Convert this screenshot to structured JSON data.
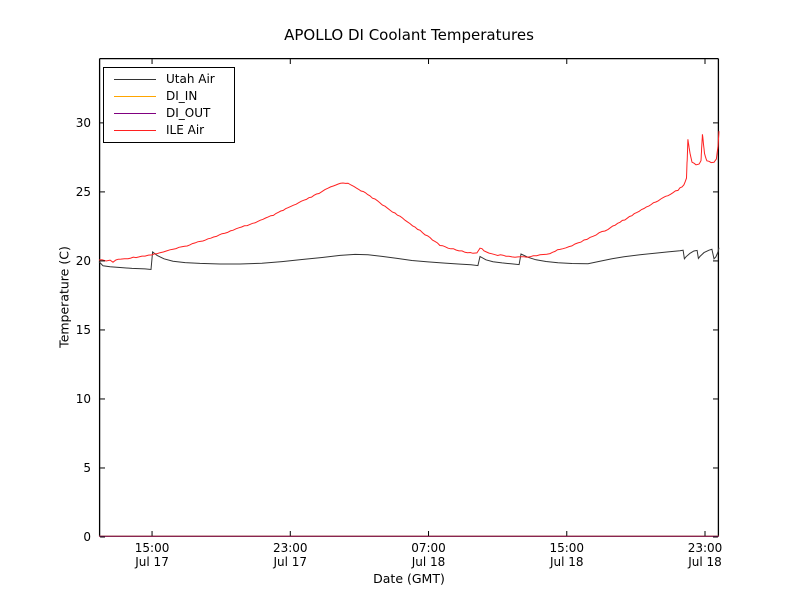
{
  "chart_data": {
    "type": "line",
    "title": "APOLLO DI Coolant Temperatures",
    "xlabel": "Date (GMT)",
    "ylabel": "Temperature (C)",
    "grid": false,
    "legend_position": "upper left",
    "x_axis": {
      "unit": "hours since Jul 17 00:00 GMT",
      "min": 11.93,
      "max": 47.81,
      "ticks": [
        {
          "value": 15,
          "label": "15:00",
          "sublabel": "Jul 17"
        },
        {
          "value": 23,
          "label": "23:00",
          "sublabel": "Jul 17"
        },
        {
          "value": 31,
          "label": "07:00",
          "sublabel": "Jul 18"
        },
        {
          "value": 39,
          "label": "15:00",
          "sublabel": "Jul 18"
        },
        {
          "value": 47,
          "label": "23:00",
          "sublabel": "Jul 18"
        }
      ]
    },
    "y_axis": {
      "min": 0,
      "max": 34.7,
      "ticks": [
        0,
        5,
        10,
        15,
        20,
        25,
        30
      ]
    },
    "series": [
      {
        "name": "Utah Air",
        "color": "#333333",
        "noisy": false,
        "points": [
          [
            11.93,
            19.95
          ],
          [
            12.16,
            19.65
          ],
          [
            12.57,
            19.58
          ],
          [
            13.15,
            19.52
          ],
          [
            13.84,
            19.46
          ],
          [
            14.59,
            19.42
          ],
          [
            14.94,
            19.38
          ],
          [
            15.03,
            20.65
          ],
          [
            15.29,
            20.4
          ],
          [
            15.69,
            20.15
          ],
          [
            16.21,
            19.98
          ],
          [
            16.91,
            19.88
          ],
          [
            17.77,
            19.82
          ],
          [
            18.93,
            19.78
          ],
          [
            20.09,
            19.78
          ],
          [
            21.36,
            19.83
          ],
          [
            22.52,
            19.95
          ],
          [
            23.68,
            20.1
          ],
          [
            24.84,
            20.25
          ],
          [
            25.88,
            20.4
          ],
          [
            26.75,
            20.47
          ],
          [
            27.5,
            20.44
          ],
          [
            28.31,
            20.33
          ],
          [
            29.18,
            20.18
          ],
          [
            30.04,
            20.03
          ],
          [
            30.97,
            19.93
          ],
          [
            31.95,
            19.84
          ],
          [
            32.82,
            19.77
          ],
          [
            33.46,
            19.72
          ],
          [
            33.86,
            19.66
          ],
          [
            33.98,
            20.32
          ],
          [
            34.32,
            20.08
          ],
          [
            34.73,
            19.94
          ],
          [
            35.25,
            19.86
          ],
          [
            35.77,
            19.79
          ],
          [
            36.24,
            19.73
          ],
          [
            36.35,
            20.5
          ],
          [
            36.76,
            20.26
          ],
          [
            37.22,
            20.08
          ],
          [
            37.8,
            19.96
          ],
          [
            38.49,
            19.87
          ],
          [
            39.3,
            19.81
          ],
          [
            40.23,
            19.8
          ],
          [
            40.92,
            19.98
          ],
          [
            41.62,
            20.15
          ],
          [
            42.31,
            20.3
          ],
          [
            43.24,
            20.45
          ],
          [
            44.16,
            20.57
          ],
          [
            44.86,
            20.65
          ],
          [
            45.55,
            20.74
          ],
          [
            45.73,
            20.78
          ],
          [
            45.81,
            20.15
          ],
          [
            45.9,
            20.3
          ],
          [
            46.13,
            20.55
          ],
          [
            46.36,
            20.72
          ],
          [
            46.54,
            20.76
          ],
          [
            46.62,
            20.18
          ],
          [
            46.71,
            20.33
          ],
          [
            46.94,
            20.6
          ],
          [
            47.23,
            20.78
          ],
          [
            47.4,
            20.84
          ],
          [
            47.52,
            20.15
          ],
          [
            47.63,
            20.3
          ],
          [
            47.75,
            20.65
          ],
          [
            47.81,
            20.95
          ]
        ]
      },
      {
        "name": "DI_IN",
        "color": "#ffa500",
        "noisy": false,
        "points": [
          [
            11.93,
            0
          ],
          [
            47.81,
            0
          ]
        ]
      },
      {
        "name": "DI_OUT",
        "color": "#800080",
        "noisy": false,
        "points": [
          [
            11.93,
            0
          ],
          [
            47.81,
            0
          ]
        ]
      },
      {
        "name": "ILE Air",
        "color": "#ff2020",
        "noisy": true,
        "points": [
          [
            11.93,
            20.1
          ],
          [
            12.1,
            20.05
          ],
          [
            12.34,
            20.0
          ],
          [
            12.57,
            20.05
          ],
          [
            12.74,
            19.9
          ],
          [
            12.91,
            20.08
          ],
          [
            13.2,
            20.12
          ],
          [
            13.61,
            20.2
          ],
          [
            14.07,
            20.28
          ],
          [
            14.59,
            20.38
          ],
          [
            15.0,
            20.45
          ],
          [
            15.46,
            20.6
          ],
          [
            16.04,
            20.78
          ],
          [
            16.73,
            21.0
          ],
          [
            17.49,
            21.3
          ],
          [
            18.24,
            21.6
          ],
          [
            19.05,
            21.95
          ],
          [
            19.86,
            22.3
          ],
          [
            20.67,
            22.65
          ],
          [
            21.42,
            23.0
          ],
          [
            22.17,
            23.4
          ],
          [
            22.87,
            23.85
          ],
          [
            23.5,
            24.2
          ],
          [
            24.08,
            24.55
          ],
          [
            24.66,
            24.9
          ],
          [
            25.18,
            25.25
          ],
          [
            25.64,
            25.5
          ],
          [
            26.05,
            25.68
          ],
          [
            26.34,
            25.6
          ],
          [
            26.69,
            25.4
          ],
          [
            27.09,
            25.1
          ],
          [
            27.61,
            24.7
          ],
          [
            28.19,
            24.2
          ],
          [
            28.77,
            23.7
          ],
          [
            29.35,
            23.2
          ],
          [
            29.93,
            22.7
          ],
          [
            30.51,
            22.2
          ],
          [
            31.09,
            21.65
          ],
          [
            31.66,
            21.15
          ],
          [
            32.13,
            20.95
          ],
          [
            32.59,
            20.8
          ],
          [
            33.11,
            20.65
          ],
          [
            33.57,
            20.55
          ],
          [
            33.8,
            20.6
          ],
          [
            33.98,
            20.95
          ],
          [
            34.21,
            20.75
          ],
          [
            34.5,
            20.6
          ],
          [
            34.85,
            20.45
          ],
          [
            35.31,
            20.38
          ],
          [
            35.83,
            20.32
          ],
          [
            36.35,
            20.28
          ],
          [
            36.87,
            20.3
          ],
          [
            37.45,
            20.42
          ],
          [
            38.03,
            20.55
          ],
          [
            38.61,
            20.85
          ],
          [
            39.3,
            21.1
          ],
          [
            40.0,
            21.5
          ],
          [
            40.69,
            21.9
          ],
          [
            41.39,
            22.3
          ],
          [
            42.08,
            22.8
          ],
          [
            42.77,
            23.3
          ],
          [
            43.47,
            23.8
          ],
          [
            44.16,
            24.3
          ],
          [
            44.86,
            24.75
          ],
          [
            45.44,
            25.15
          ],
          [
            45.78,
            25.5
          ],
          [
            45.93,
            26.0
          ],
          [
            46.01,
            28.8
          ],
          [
            46.13,
            27.8
          ],
          [
            46.25,
            27.15
          ],
          [
            46.48,
            26.95
          ],
          [
            46.65,
            27.0
          ],
          [
            46.77,
            27.3
          ],
          [
            46.85,
            29.2
          ],
          [
            46.97,
            27.8
          ],
          [
            47.11,
            27.25
          ],
          [
            47.35,
            27.1
          ],
          [
            47.52,
            27.15
          ],
          [
            47.66,
            27.4
          ],
          [
            47.75,
            28.3
          ],
          [
            47.81,
            29.4
          ]
        ]
      }
    ]
  }
}
